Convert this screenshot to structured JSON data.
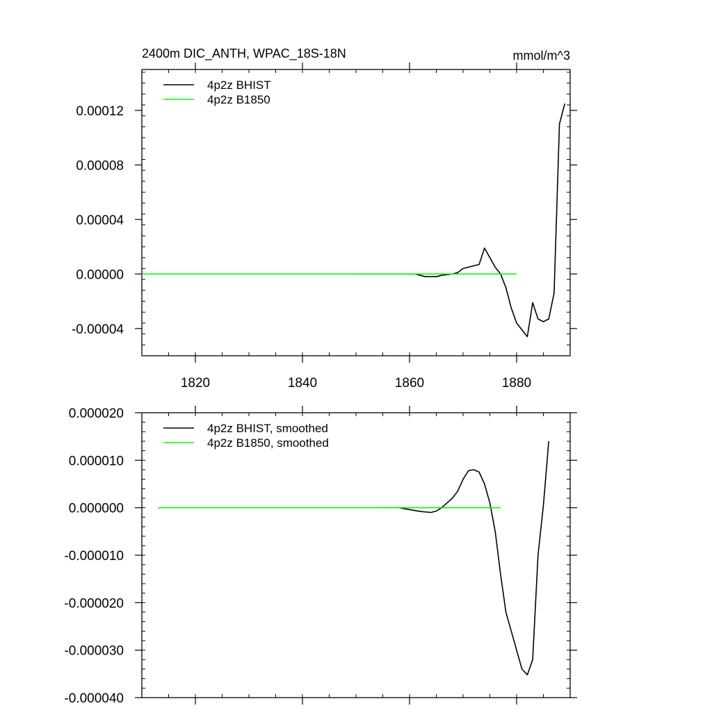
{
  "chart_data": [
    {
      "type": "line",
      "title": "2400m DIC_ANTH, WPAC_18S-18N",
      "units": "mmol/m^3",
      "xlim": [
        1810,
        1890
      ],
      "ylim": [
        -6e-05,
        0.00015
      ],
      "x_ticks": [
        1820,
        1840,
        1860,
        1880
      ],
      "x_tick_labels": [
        "1820",
        "1840",
        "1860",
        "1880"
      ],
      "y_ticks": [
        -4e-05,
        0.0,
        4e-05,
        8e-05,
        0.00012
      ],
      "y_tick_labels": [
        "-0.00004",
        "0.00000",
        "0.00004",
        "0.00008",
        "0.00012"
      ],
      "legend_position": "top-left",
      "series": [
        {
          "name": "4p2z BHIST",
          "color": "#000000",
          "x": [
            1850,
            1852,
            1854,
            1856,
            1858,
            1860,
            1861,
            1862,
            1863,
            1864,
            1865,
            1866,
            1867,
            1868,
            1869,
            1870,
            1871,
            1872,
            1873,
            1874,
            1875,
            1876,
            1877,
            1878,
            1879,
            1880,
            1881,
            1882,
            1883,
            1884,
            1885,
            1886,
            1887,
            1888,
            1889
          ],
          "y": [
            0.0,
            0.0,
            0.0,
            0.0,
            0.0,
            0.0,
            0.0,
            -1e-06,
            -2e-06,
            -2e-06,
            -2e-06,
            -1e-06,
            -5e-07,
            0.0,
            1e-06,
            4e-06,
            5e-06,
            6e-06,
            7e-06,
            1.9e-05,
            1.2e-05,
            5e-06,
            0.0,
            -1e-05,
            -2.5e-05,
            -3.6e-05,
            -4.1e-05,
            -4.6e-05,
            -2.1e-05,
            -3.3e-05,
            -3.5e-05,
            -3.3e-05,
            -1.4e-05,
            0.00011,
            0.000125
          ]
        },
        {
          "name": "4p2z B1850",
          "color": "#00ff00",
          "x": [
            1810,
            1880
          ],
          "y": [
            0.0,
            0.0
          ]
        }
      ]
    },
    {
      "type": "line",
      "xlim": [
        1810,
        1890
      ],
      "ylim": [
        -4e-05,
        2e-05
      ],
      "x_ticks": [
        1820,
        1840,
        1860,
        1880
      ],
      "y_ticks": [
        -4e-05,
        -3e-05,
        -2e-05,
        -1e-05,
        0.0,
        1e-05,
        2e-05
      ],
      "y_tick_labels": [
        "-0.000040",
        "-0.000030",
        "-0.000020",
        "-0.000010",
        "0.000000",
        "0.000010",
        "0.000020"
      ],
      "legend_position": "top-left",
      "series": [
        {
          "name": "4p2z BHIST, smoothed",
          "color": "#000000",
          "x": [
            1854,
            1856,
            1858,
            1860,
            1862,
            1864,
            1865,
            1866,
            1867,
            1868,
            1869,
            1870,
            1871,
            1872,
            1873,
            1874,
            1875,
            1876,
            1877,
            1878,
            1879,
            1880,
            1881,
            1882,
            1883,
            1884,
            1885,
            1886
          ],
          "y": [
            0.0,
            0.0,
            0.0,
            -4e-07,
            -8e-07,
            -1e-06,
            -7e-07,
            0.0,
            1e-06,
            2e-06,
            3.5e-06,
            6e-06,
            7.8e-06,
            8e-06,
            7.5e-06,
            5e-06,
            1e-06,
            -5e-06,
            -1.4e-05,
            -2.2e-05,
            -2.6e-05,
            -3e-05,
            -3.4e-05,
            -3.52e-05,
            -3.2e-05,
            -1e-05,
            5e-07,
            1.4e-05
          ]
        },
        {
          "name": "4p2z B1850, smoothed",
          "color": "#00ff00",
          "x": [
            1813,
            1877
          ],
          "y": [
            0.0,
            0.0
          ]
        }
      ]
    }
  ]
}
